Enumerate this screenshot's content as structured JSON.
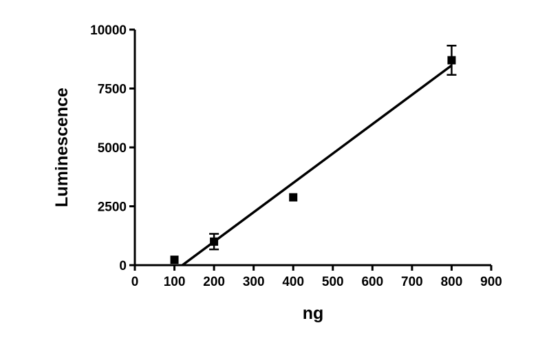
{
  "chart_data": {
    "type": "scatter",
    "title": "",
    "xlabel": "ng",
    "ylabel": "Luminescence",
    "xlim": [
      0,
      900
    ],
    "ylim": [
      0,
      10000
    ],
    "x_ticks": [
      0,
      100,
      200,
      300,
      400,
      500,
      600,
      700,
      800,
      900
    ],
    "x_tick_labels": [
      "0",
      "100",
      "200",
      "300",
      "400",
      "500",
      "600",
      "700",
      "800",
      "900"
    ],
    "y_ticks": [
      0,
      2500,
      5000,
      7500,
      10000
    ],
    "y_tick_labels": [
      "0",
      "2500",
      "5000",
      "7500",
      "10000"
    ],
    "grid": false,
    "legend": "none",
    "points": [
      {
        "x": 100,
        "y": 230,
        "err": 0
      },
      {
        "x": 200,
        "y": 1000,
        "err": 330
      },
      {
        "x": 400,
        "y": 2880,
        "err": 0
      },
      {
        "x": 800,
        "y": 8700,
        "err": 620
      }
    ],
    "fit_line": {
      "x_start": 120,
      "y_start": 0,
      "x_end": 800,
      "y_end": 8480
    },
    "marker": "square",
    "color": "#000000"
  }
}
